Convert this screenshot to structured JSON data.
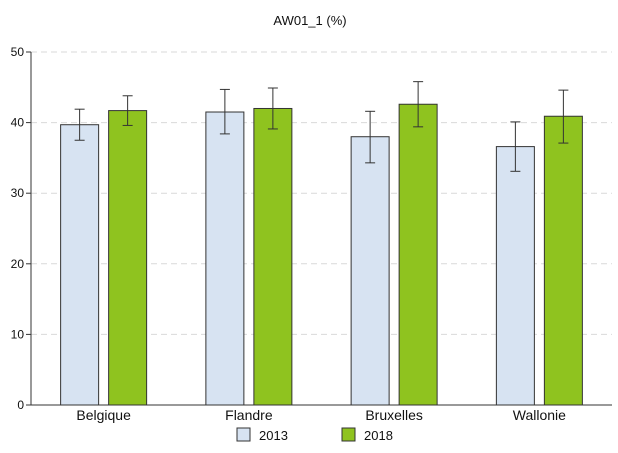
{
  "chart_data": {
    "type": "bar",
    "title": "AW01_1 (%)",
    "xlabel": "",
    "ylabel": "",
    "ylim": [
      0,
      50
    ],
    "yticks": [
      0,
      10,
      20,
      30,
      40,
      50
    ],
    "grid": true,
    "legend_position": "bottom",
    "categories": [
      "Belgique",
      "Flandre",
      "Bruxelles",
      "Wallonie"
    ],
    "series": [
      {
        "name": "2013",
        "color": "#d7e3f2",
        "values": [
          39.7,
          41.5,
          38.0,
          36.6
        ],
        "ci_low": [
          37.5,
          38.4,
          34.3,
          33.1
        ],
        "ci_high": [
          41.9,
          44.7,
          41.6,
          40.1
        ]
      },
      {
        "name": "2018",
        "color": "#8fc31f",
        "values": [
          41.7,
          42.0,
          42.6,
          40.9
        ],
        "ci_low": [
          39.6,
          39.1,
          39.4,
          37.1
        ],
        "ci_high": [
          43.8,
          44.9,
          45.8,
          44.6
        ]
      }
    ]
  }
}
